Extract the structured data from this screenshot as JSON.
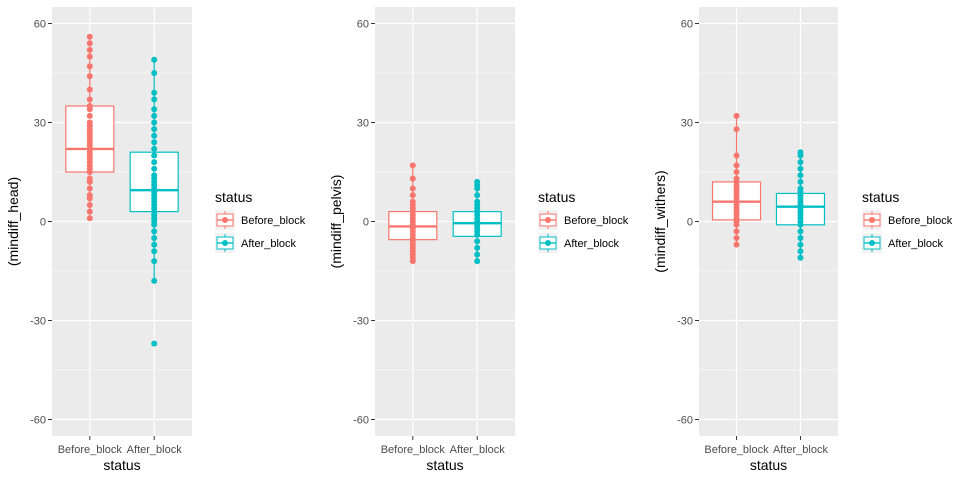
{
  "legend_key_labels": {
    "before": "Before_block",
    "after": "After_block"
  },
  "colors": {
    "before": "#F8766D",
    "after": "#00BFC4",
    "panel": "#EBEBEB",
    "grid": "#FFFFFF",
    "axis_text": "#4D4D4D",
    "title_text": "#000000"
  },
  "chart_data": [
    {
      "type": "boxplot",
      "xlabel": "status",
      "ylabel": "(mindiff_head)",
      "categories": [
        "Before_block",
        "After_block"
      ],
      "ylim": [
        -65,
        65
      ],
      "yticks": [
        -60,
        -30,
        0,
        30,
        60
      ],
      "grid": true,
      "legend": {
        "title": "status",
        "position": "right",
        "entries": [
          "Before_block",
          "After_block"
        ]
      },
      "series": [
        {
          "category": "Before_block",
          "box": {
            "q1": 15,
            "median": 22,
            "q3": 35
          },
          "whisker": [
            1,
            56
          ],
          "points": [
            1,
            3,
            5,
            7,
            8,
            10,
            12,
            13,
            15,
            16,
            17,
            18,
            19,
            20,
            21,
            22,
            22,
            23,
            24,
            25,
            26,
            27,
            28,
            29,
            30,
            32,
            34,
            35,
            37,
            40,
            44,
            47,
            50,
            52,
            54,
            56
          ]
        },
        {
          "category": "After_block",
          "box": {
            "q1": 3,
            "median": 9.5,
            "q3": 21
          },
          "whisker": [
            -18,
            49
          ],
          "points": [
            -37,
            -18,
            -12,
            -9,
            -7,
            -5,
            -3,
            -1,
            0,
            1,
            2,
            3,
            4,
            5,
            6,
            7,
            8,
            9,
            10,
            11,
            12,
            13,
            14,
            16,
            18,
            20,
            22,
            24,
            26,
            28,
            30,
            32,
            34,
            37,
            39,
            45,
            49
          ]
        }
      ]
    },
    {
      "type": "boxplot",
      "xlabel": "status",
      "ylabel": "(mindiff_pelvis)",
      "categories": [
        "Before_block",
        "After_block"
      ],
      "ylim": [
        -65,
        65
      ],
      "yticks": [
        -60,
        -30,
        0,
        30,
        60
      ],
      "grid": true,
      "legend": {
        "title": "status",
        "position": "right",
        "entries": [
          "Before_block",
          "After_block"
        ]
      },
      "series": [
        {
          "category": "Before_block",
          "box": {
            "q1": -5.5,
            "median": -1.5,
            "q3": 3
          },
          "whisker": [
            -12,
            17
          ],
          "points": [
            -12,
            -11,
            -10,
            -9,
            -8,
            -7,
            -6,
            -5,
            -4,
            -3,
            -2,
            -1,
            0,
            1,
            2,
            3,
            4,
            5,
            6,
            8,
            10,
            13,
            17
          ]
        },
        {
          "category": "After_block",
          "box": {
            "q1": -4.5,
            "median": -0.5,
            "q3": 3
          },
          "whisker": [
            -12,
            12
          ],
          "points": [
            -12,
            -10,
            -8,
            -6,
            -4,
            -3,
            -2,
            -1,
            0,
            1,
            2,
            3,
            4,
            5,
            6,
            8,
            10,
            11,
            12
          ]
        }
      ]
    },
    {
      "type": "boxplot",
      "xlabel": "status",
      "ylabel": "(mindiff_withers)",
      "categories": [
        "Before_block",
        "After_block"
      ],
      "ylim": [
        -65,
        65
      ],
      "yticks": [
        -60,
        -30,
        0,
        30,
        60
      ],
      "grid": true,
      "legend": {
        "title": "status",
        "position": "right",
        "entries": [
          "Before_block",
          "After_block"
        ]
      },
      "series": [
        {
          "category": "Before_block",
          "box": {
            "q1": 0.5,
            "median": 6,
            "q3": 12
          },
          "whisker": [
            -7,
            32
          ],
          "points": [
            -7,
            -5,
            -3,
            -1,
            0,
            1,
            2,
            3,
            4,
            5,
            6,
            7,
            8,
            9,
            10,
            11,
            12,
            13,
            15,
            17,
            20,
            28,
            32
          ]
        },
        {
          "category": "After_block",
          "box": {
            "q1": -1,
            "median": 4.5,
            "q3": 8.5
          },
          "whisker": [
            -11,
            21
          ],
          "points": [
            -11,
            -9,
            -7,
            -5,
            -3,
            -1,
            0,
            1,
            2,
            3,
            4,
            5,
            6,
            7,
            8,
            9,
            10,
            12,
            14,
            16,
            18,
            20,
            21
          ]
        }
      ]
    }
  ]
}
